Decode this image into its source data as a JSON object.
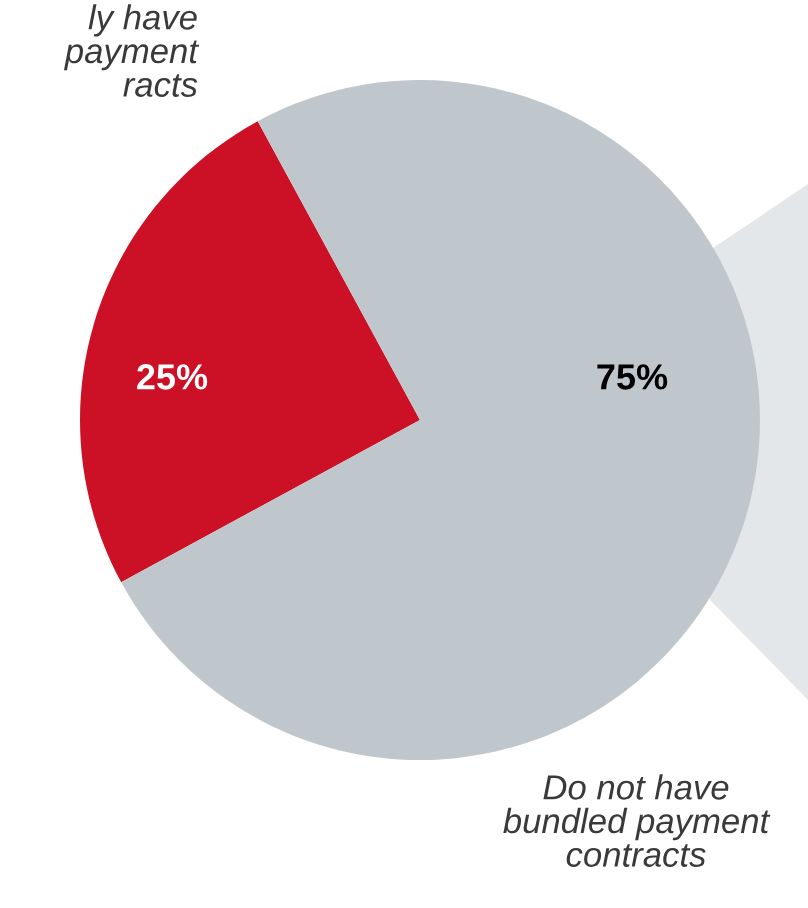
{
  "chart_data": {
    "type": "pie",
    "categories": [
      "ly have\npayment\nracts",
      "Do not have\nbundled payment\ncontracts"
    ],
    "values": [
      25,
      75
    ],
    "colors": [
      "#cc1126",
      "#bfc7cd"
    ],
    "value_labels": [
      "25%",
      "75%"
    ],
    "legend": false
  }
}
